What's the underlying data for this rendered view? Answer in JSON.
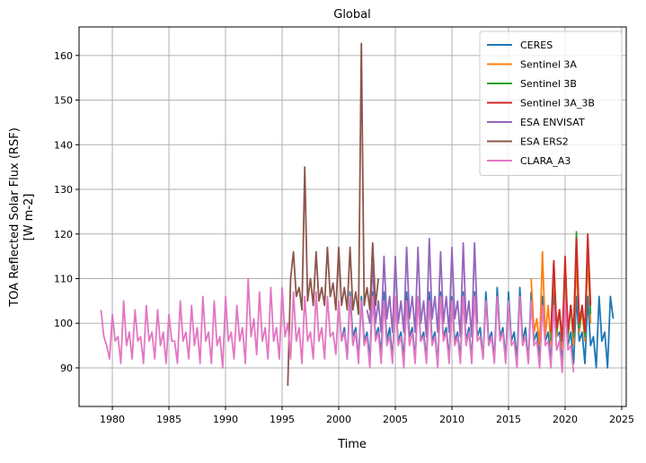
{
  "chart_data": {
    "type": "line",
    "title": "Global",
    "xlabel": "Time",
    "ylabel": [
      "TOA Reflected Solar Flux (RSF)",
      "[W m-2]"
    ],
    "xlim": [
      1977.06,
      2025.4
    ],
    "ylim": [
      81.35,
      166.4
    ],
    "xticks": [
      1980,
      1985,
      1990,
      1995,
      2000,
      2005,
      2010,
      2015,
      2020,
      2025
    ],
    "yticks": [
      90,
      100,
      110,
      120,
      130,
      140,
      150,
      160
    ],
    "grid": true,
    "legend": "upper-right",
    "series": [
      {
        "name": "CERES",
        "color": "#1f77b4",
        "x": [
          2000.25,
          2000.5,
          2000.75,
          2001,
          2001.25,
          2001.5,
          2001.75,
          2002,
          2002.25,
          2002.5,
          2002.75,
          2003,
          2003.25,
          2003.5,
          2003.75,
          2004,
          2004.25,
          2004.5,
          2004.75,
          2005,
          2005.25,
          2005.5,
          2005.75,
          2006,
          2006.25,
          2006.5,
          2006.75,
          2007,
          2007.25,
          2007.5,
          2007.75,
          2008,
          2008.25,
          2008.5,
          2008.75,
          2009,
          2009.25,
          2009.5,
          2009.75,
          2010,
          2010.25,
          2010.5,
          2010.75,
          2011,
          2011.25,
          2011.5,
          2011.75,
          2012,
          2012.25,
          2012.5,
          2012.75,
          2013,
          2013.25,
          2013.5,
          2013.75,
          2014,
          2014.25,
          2014.5,
          2014.75,
          2015,
          2015.25,
          2015.5,
          2015.75,
          2016,
          2016.25,
          2016.5,
          2016.75,
          2017,
          2017.25,
          2017.5,
          2017.75,
          2018,
          2018.25,
          2018.5,
          2018.75,
          2019,
          2019.25,
          2019.5,
          2019.75,
          2020,
          2020.25,
          2020.5,
          2020.75,
          2021,
          2021.25,
          2021.5,
          2021.75,
          2022,
          2022.25,
          2022.5,
          2022.75,
          2023,
          2023.25,
          2023.5,
          2023.75,
          2024,
          2024.25
        ],
        "values": [
          96,
          99,
          92,
          107,
          97,
          99,
          92,
          106,
          96,
          98,
          92,
          107,
          97,
          99,
          93,
          107,
          96,
          99,
          92,
          106,
          96,
          98,
          92,
          107,
          97,
          99,
          92,
          106,
          96,
          98,
          92,
          107,
          96,
          98,
          91,
          107,
          97,
          99,
          92,
          106,
          96,
          98,
          92,
          107,
          96,
          99,
          92,
          107,
          97,
          99,
          92,
          107,
          96,
          98,
          92,
          108,
          97,
          99,
          92,
          107,
          96,
          98,
          92,
          108,
          96,
          99,
          91,
          107,
          96,
          98,
          92,
          106,
          96,
          98,
          91,
          107,
          97,
          98,
          92,
          105,
          95,
          98,
          91,
          106,
          96,
          98,
          91,
          106,
          95,
          97,
          90,
          106,
          96,
          98,
          90,
          106,
          101
        ]
      },
      {
        "name": "Sentinel 3A",
        "color": "#ff7f0e",
        "x": [
          2017,
          2017.25,
          2017.5,
          2017.75,
          2018,
          2018.25,
          2018.5,
          2018.75,
          2019,
          2019.25,
          2019.5,
          2019.75,
          2020,
          2020.25,
          2020.5,
          2020.75,
          2021,
          2021.25,
          2021.5,
          2021.75,
          2022,
          2022.25
        ],
        "values": [
          110,
          98,
          101,
          95,
          116,
          97,
          104,
          95,
          112,
          97,
          103,
          94,
          113,
          97,
          104,
          95,
          114,
          98,
          103,
          96,
          115,
          100
        ]
      },
      {
        "name": "Sentinel 3B",
        "color": "#2ca02c",
        "x": [
          2018.75,
          2019,
          2019.25,
          2019.5,
          2019.75,
          2020,
          2020.25,
          2020.5,
          2020.75,
          2021,
          2021.25,
          2021.5,
          2021.75,
          2022,
          2022.25
        ],
        "values": [
          96,
          114,
          98,
          103,
          96,
          114,
          97,
          104,
          97,
          120.5,
          99,
          104,
          97,
          119,
          102
        ]
      },
      {
        "name": "Sentinel 3A_3B",
        "color": "#d62728",
        "x": [
          2018.75,
          2019,
          2019.25,
          2019.5,
          2019.75,
          2020,
          2020.25,
          2020.5,
          2020.75,
          2021,
          2021.25,
          2021.5,
          2021.75,
          2022,
          2022.25
        ],
        "values": [
          98,
          114,
          99,
          103,
          96,
          115,
          98,
          104,
          98,
          119,
          100,
          104,
          98,
          120,
          104
        ]
      },
      {
        "name": "ESA ENVISAT",
        "color": "#9467bd",
        "x": [
          2002.5,
          2002.75,
          2003,
          2003.25,
          2003.5,
          2003.75,
          2004,
          2004.25,
          2004.5,
          2004.75,
          2005,
          2005.25,
          2005.5,
          2005.75,
          2006,
          2006.25,
          2006.5,
          2006.75,
          2007,
          2007.25,
          2007.5,
          2007.75,
          2008,
          2008.25,
          2008.5,
          2008.75,
          2009,
          2009.25,
          2009.5,
          2009.75,
          2010,
          2010.25,
          2010.5,
          2010.75,
          2011,
          2011.25,
          2011.5,
          2011.75,
          2012,
          2012.25
        ],
        "values": [
          103,
          100,
          113,
          100,
          105,
          98,
          115,
          101,
          106,
          98,
          115,
          100,
          105,
          98,
          117,
          101,
          106,
          98,
          117,
          100,
          105,
          97,
          119,
          101,
          106,
          98,
          116,
          100,
          106,
          98,
          117,
          101,
          105,
          97,
          118,
          100,
          105,
          97,
          118,
          100
        ]
      },
      {
        "name": "ESA ERS2",
        "color": "#8c564b",
        "x": [
          1995.5,
          1995.75,
          1996,
          1996.25,
          1996.5,
          1996.75,
          1997,
          1997.25,
          1997.5,
          1997.75,
          1998,
          1998.25,
          1998.5,
          1998.75,
          1999,
          1999.25,
          1999.5,
          1999.75,
          2000,
          2000.25,
          2000.5,
          2000.75,
          2001,
          2001.25,
          2001.5,
          2001.75,
          2002,
          2002.25,
          2002.5,
          2002.75,
          2003,
          2003.25,
          2003.5
        ],
        "values": [
          86,
          110,
          116,
          106,
          108,
          103,
          135,
          105,
          110,
          104,
          116,
          105,
          108,
          104,
          117,
          106,
          109,
          103,
          117,
          104,
          108,
          103,
          117,
          103,
          107,
          102,
          162.7,
          104,
          108,
          103,
          118,
          104,
          110
        ]
      },
      {
        "name": "CLARA_A3",
        "color": "#e377c2",
        "x": [
          1979,
          1979.25,
          1979.5,
          1979.75,
          1980,
          1980.25,
          1980.5,
          1980.75,
          1981,
          1981.25,
          1981.5,
          1981.75,
          1982,
          1982.25,
          1982.5,
          1982.75,
          1983,
          1983.25,
          1983.5,
          1983.75,
          1984,
          1984.25,
          1984.5,
          1984.75,
          1985,
          1985.25,
          1985.5,
          1985.75,
          1986,
          1986.25,
          1986.5,
          1986.75,
          1987,
          1987.25,
          1987.5,
          1987.75,
          1988,
          1988.25,
          1988.5,
          1988.75,
          1989,
          1989.25,
          1989.5,
          1989.75,
          1990,
          1990.25,
          1990.5,
          1990.75,
          1991,
          1991.25,
          1991.5,
          1991.75,
          1992,
          1992.25,
          1992.5,
          1992.75,
          1993,
          1993.25,
          1993.5,
          1993.75,
          1994,
          1994.25,
          1994.5,
          1994.75,
          1995,
          1995.25,
          1995.5,
          1995.75,
          1996,
          1996.25,
          1996.5,
          1996.75,
          1997,
          1997.25,
          1997.5,
          1997.75,
          1998,
          1998.25,
          1998.5,
          1998.75,
          1999,
          1999.25,
          1999.5,
          1999.75,
          2000,
          2000.25,
          2000.5,
          2000.75,
          2001,
          2001.25,
          2001.5,
          2001.75,
          2002,
          2002.25,
          2002.5,
          2002.75,
          2003,
          2003.25,
          2003.5,
          2003.75,
          2004,
          2004.25,
          2004.5,
          2004.75,
          2005,
          2005.25,
          2005.5,
          2005.75,
          2006,
          2006.25,
          2006.5,
          2006.75,
          2007,
          2007.25,
          2007.5,
          2007.75,
          2008,
          2008.25,
          2008.5,
          2008.75,
          2009,
          2009.25,
          2009.5,
          2009.75,
          2010,
          2010.25,
          2010.5,
          2010.75,
          2011,
          2011.25,
          2011.5,
          2011.75,
          2012,
          2012.25,
          2012.5,
          2012.75,
          2013,
          2013.25,
          2013.5,
          2013.75,
          2014,
          2014.25,
          2014.5,
          2014.75,
          2015,
          2015.25,
          2015.5,
          2015.75,
          2016,
          2016.25,
          2016.5,
          2016.75,
          2017,
          2017.25,
          2017.5,
          2017.75,
          2018,
          2018.25,
          2018.5,
          2018.75,
          2019,
          2019.25,
          2019.5,
          2019.75,
          2020,
          2020.25,
          2020.5,
          2020.75
        ],
        "values": [
          103,
          97,
          95,
          92,
          102,
          96,
          97,
          91,
          105,
          95,
          98,
          92,
          103,
          96,
          97,
          91,
          104,
          96,
          98,
          92,
          103,
          95,
          98,
          91,
          102,
          96,
          96,
          91,
          105,
          96,
          98,
          92,
          104,
          95,
          99,
          91,
          106,
          96,
          98,
          91,
          105,
          95,
          97,
          90,
          106,
          96,
          98,
          92,
          104,
          96,
          99,
          91,
          110,
          97,
          101,
          93,
          107,
          96,
          99,
          92,
          108,
          96,
          99,
          92,
          108,
          97,
          100,
          92,
          107,
          96,
          99,
          91,
          106,
          96,
          98,
          92,
          107,
          96,
          99,
          92,
          106,
          97,
          98,
          93,
          105,
          96,
          98,
          92,
          106,
          95,
          98,
          91,
          105,
          95,
          97,
          90,
          106,
          96,
          98,
          91,
          105,
          95,
          97,
          91,
          106,
          95,
          97,
          90,
          105,
          95,
          98,
          91,
          106,
          96,
          97,
          91,
          105,
          95,
          97,
          90,
          106,
          96,
          98,
          91,
          105,
          95,
          97,
          91,
          106,
          95,
          98,
          91,
          106,
          96,
          97,
          92,
          105,
          95,
          97,
          91,
          106,
          96,
          98,
          91,
          105,
          95,
          96,
          90,
          106,
          95,
          97,
          91,
          105,
          95,
          96,
          90,
          104,
          95,
          96,
          90,
          104,
          94,
          96,
          89,
          105,
          94,
          95,
          89
        ]
      }
    ]
  }
}
